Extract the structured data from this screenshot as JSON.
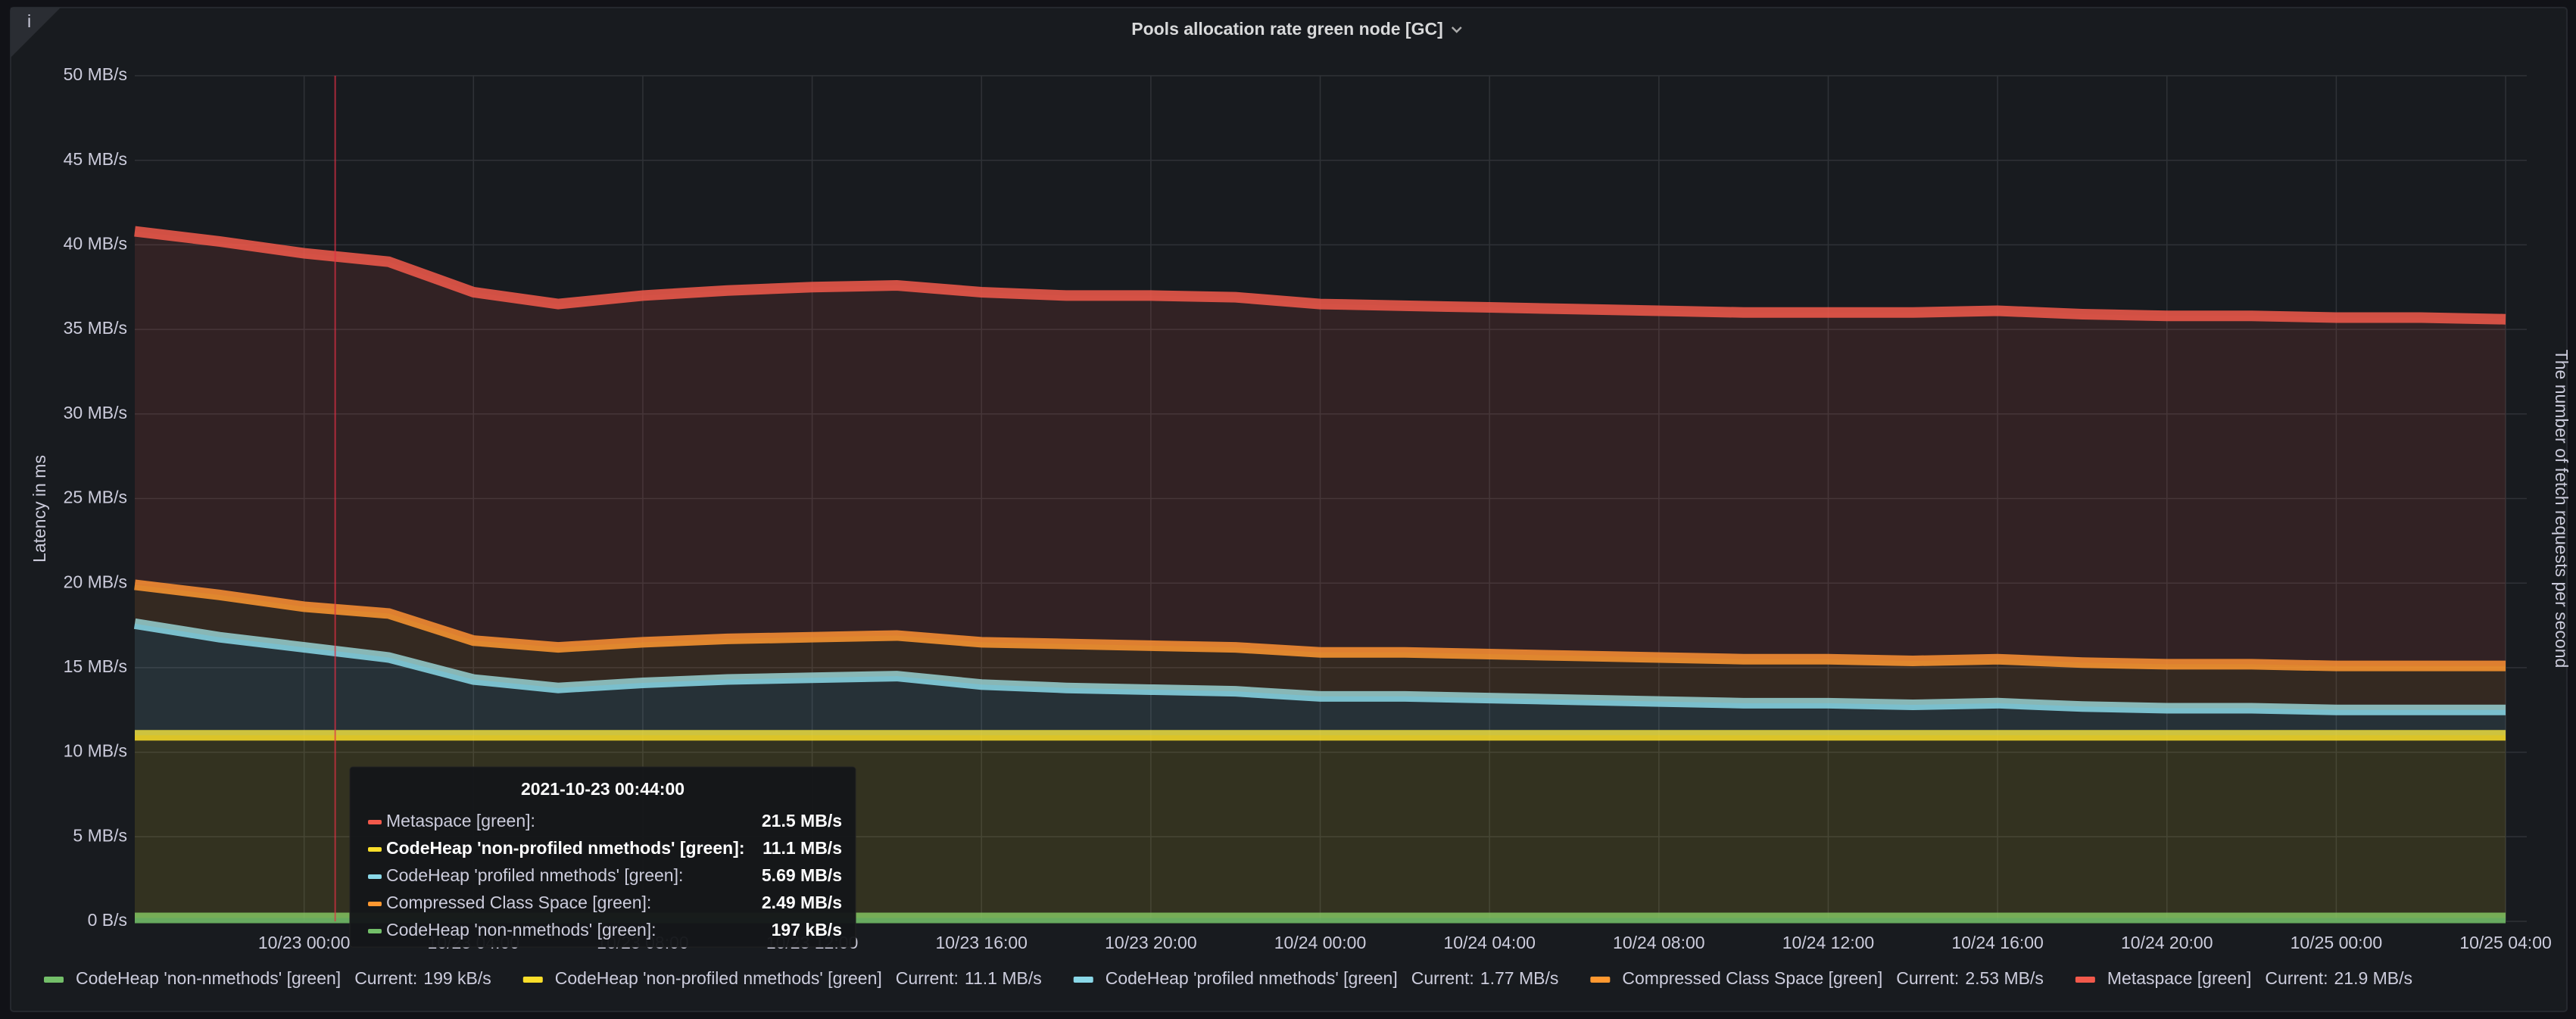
{
  "info_icon": "i",
  "chart_data": {
    "type": "area",
    "stacked": true,
    "title": "Pools allocation rate green node [GC]",
    "ylabel": "Latency in ms",
    "y2label": "The number of fetch requests per second",
    "grid": true,
    "legend": "bottom",
    "legend_value_title": "Current:",
    "x": [
      "2021-10-22T20:00",
      "2021-10-22T22:00",
      "2021-10-23T00:00",
      "2021-10-23T02:00",
      "2021-10-23T04:00",
      "2021-10-23T06:00",
      "2021-10-23T08:00",
      "2021-10-23T10:00",
      "2021-10-23T12:00",
      "2021-10-23T14:00",
      "2021-10-23T16:00",
      "2021-10-23T18:00",
      "2021-10-23T20:00",
      "2021-10-23T22:00",
      "2021-10-24T00:00",
      "2021-10-24T02:00",
      "2021-10-24T04:00",
      "2021-10-24T06:00",
      "2021-10-24T08:00",
      "2021-10-24T10:00",
      "2021-10-24T12:00",
      "2021-10-24T14:00",
      "2021-10-24T16:00",
      "2021-10-24T18:00",
      "2021-10-24T20:00",
      "2021-10-24T22:00",
      "2021-10-25T00:00",
      "2021-10-25T02:00",
      "2021-10-25T04:00"
    ],
    "xlim": [
      "2021-10-22T20:00",
      "2021-10-25T04:30"
    ],
    "xticks": [
      {
        "value": "2021-10-23T00:00",
        "label": "10/23 00:00"
      },
      {
        "value": "2021-10-23T04:00",
        "label": "10/23 04:00"
      },
      {
        "value": "2021-10-23T08:00",
        "label": "10/23 08:00"
      },
      {
        "value": "2021-10-23T12:00",
        "label": "10/23 12:00"
      },
      {
        "value": "2021-10-23T16:00",
        "label": "10/23 16:00"
      },
      {
        "value": "2021-10-23T20:00",
        "label": "10/23 20:00"
      },
      {
        "value": "2021-10-24T00:00",
        "label": "10/24 00:00"
      },
      {
        "value": "2021-10-24T04:00",
        "label": "10/24 04:00"
      },
      {
        "value": "2021-10-24T08:00",
        "label": "10/24 08:00"
      },
      {
        "value": "2021-10-24T12:00",
        "label": "10/24 12:00"
      },
      {
        "value": "2021-10-24T16:00",
        "label": "10/24 16:00"
      },
      {
        "value": "2021-10-24T20:00",
        "label": "10/24 20:00"
      },
      {
        "value": "2021-10-25T00:00",
        "label": "10/25 00:00"
      },
      {
        "value": "2021-10-25T04:00",
        "label": "10/25 04:00"
      }
    ],
    "ylim": [
      0,
      50
    ],
    "yticks": [
      {
        "value": 0,
        "label": "0 B/s"
      },
      {
        "value": 5,
        "label": "5 MB/s"
      },
      {
        "value": 10,
        "label": "10 MB/s"
      },
      {
        "value": 15,
        "label": "15 MB/s"
      },
      {
        "value": 20,
        "label": "20 MB/s"
      },
      {
        "value": 25,
        "label": "25 MB/s"
      },
      {
        "value": 30,
        "label": "30 MB/s"
      },
      {
        "value": 35,
        "label": "35 MB/s"
      },
      {
        "value": 40,
        "label": "40 MB/s"
      },
      {
        "value": 45,
        "label": "45 MB/s"
      },
      {
        "value": 50,
        "label": "50 MB/s"
      }
    ],
    "series": [
      {
        "name": "CodeHeap 'non-nmethods' [green]",
        "color": "#73bf69",
        "current": {
          "value": 0.199,
          "label": "199 kB/s"
        },
        "values": [
          0.2,
          0.2,
          0.2,
          0.2,
          0.2,
          0.2,
          0.2,
          0.2,
          0.2,
          0.2,
          0.2,
          0.2,
          0.2,
          0.2,
          0.2,
          0.2,
          0.2,
          0.2,
          0.2,
          0.2,
          0.2,
          0.2,
          0.2,
          0.2,
          0.2,
          0.2,
          0.2,
          0.2,
          0.2
        ]
      },
      {
        "name": "CodeHeap 'non-profiled nmethods' [green]",
        "color": "#fade2a",
        "current": {
          "value": 11.1,
          "label": "11.1 MB/s"
        },
        "values": [
          10.8,
          10.8,
          10.8,
          10.8,
          10.8,
          10.8,
          10.8,
          10.8,
          10.8,
          10.8,
          10.8,
          10.8,
          10.8,
          10.8,
          10.8,
          10.8,
          10.8,
          10.8,
          10.8,
          10.8,
          10.8,
          10.8,
          10.8,
          10.8,
          10.8,
          10.8,
          10.8,
          10.8,
          10.8
        ]
      },
      {
        "name": "CodeHeap 'profiled nmethods' [green]",
        "color": "#8ad8e8",
        "current": {
          "value": 1.77,
          "label": "1.77 MB/s"
        },
        "values": [
          6.6,
          5.8,
          5.2,
          4.6,
          3.3,
          2.8,
          3.1,
          3.3,
          3.4,
          3.5,
          3.0,
          2.8,
          2.7,
          2.6,
          2.3,
          2.3,
          2.2,
          2.1,
          2.0,
          1.9,
          1.9,
          1.8,
          1.9,
          1.7,
          1.6,
          1.6,
          1.5,
          1.5,
          1.5
        ]
      },
      {
        "name": "Compressed Class Space [green]",
        "color": "#ff9830",
        "current": {
          "value": 2.53,
          "label": "2.53 MB/s"
        },
        "values": [
          2.3,
          2.5,
          2.4,
          2.6,
          2.3,
          2.4,
          2.4,
          2.4,
          2.4,
          2.4,
          2.5,
          2.6,
          2.6,
          2.6,
          2.6,
          2.6,
          2.6,
          2.6,
          2.6,
          2.6,
          2.6,
          2.6,
          2.6,
          2.6,
          2.6,
          2.6,
          2.6,
          2.6,
          2.6
        ]
      },
      {
        "name": "Metaspace [green]",
        "color": "#f2594b",
        "current": {
          "value": 21.9,
          "label": "21.9 MB/s"
        },
        "values": [
          20.9,
          20.9,
          20.9,
          20.8,
          20.6,
          20.3,
          20.5,
          20.6,
          20.7,
          20.7,
          20.7,
          20.6,
          20.7,
          20.7,
          20.6,
          20.5,
          20.5,
          20.5,
          20.5,
          20.5,
          20.5,
          20.6,
          20.6,
          20.6,
          20.6,
          20.6,
          20.6,
          20.6,
          20.5
        ]
      }
    ],
    "tooltip": {
      "time": "2021-10-23 00:44:00",
      "items": [
        {
          "label": "Metaspace [green]:",
          "color": "#f2594b",
          "value": {
            "value": 21.5,
            "label": "21.5 MB/s"
          }
        },
        {
          "label": "CodeHeap 'non-profiled nmethods' [green]:",
          "color": "#fade2a",
          "bold": true,
          "value": {
            "value": 11.1,
            "label": "11.1 MB/s"
          }
        },
        {
          "label": "CodeHeap 'profiled nmethods' [green]:",
          "color": "#8ad8e8",
          "value": {
            "value": 5.69,
            "label": "5.69 MB/s"
          }
        },
        {
          "label": "Compressed Class Space [green]:",
          "color": "#ff9830",
          "value": {
            "value": 2.49,
            "label": "2.49 MB/s"
          }
        },
        {
          "label": "CodeHeap 'non-nmethods' [green]:",
          "color": "#73bf69",
          "value": {
            "value": 0.197,
            "label": "197 kB/s"
          }
        }
      ]
    }
  }
}
